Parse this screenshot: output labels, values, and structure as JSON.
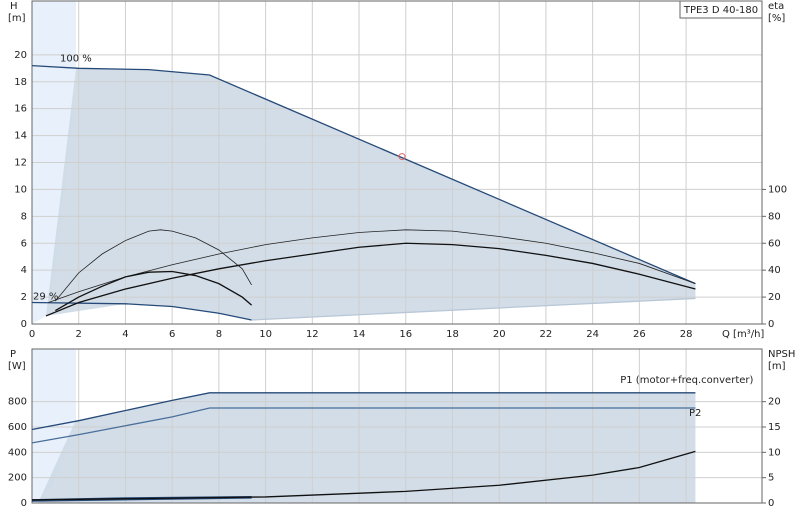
{
  "chart_data": [
    {
      "type": "line",
      "title": "TPE3 D 40-180",
      "x_label": "Q [m³/h]",
      "y_label": "H",
      "y_unit": "[m]",
      "y2_label": "eta",
      "y2_unit": "[%]",
      "xlim": [
        0,
        31.25
      ],
      "xticks": [
        0,
        2,
        4,
        6,
        8,
        10,
        12,
        14,
        16,
        18,
        20,
        22,
        24,
        26,
        28
      ],
      "ylim": [
        0,
        24
      ],
      "yticks": [
        0,
        2,
        4,
        6,
        8,
        10,
        12,
        14,
        16,
        18,
        20
      ],
      "y2lim": [
        0,
        240
      ],
      "y2ticks": [
        0,
        20,
        40,
        60,
        80,
        100
      ],
      "grid": true,
      "series": [
        {
          "name": "100 %",
          "color": "#264a78",
          "x": [
            0,
            2,
            5,
            7.6,
            28.4
          ],
          "values": [
            19.2,
            19,
            18.9,
            18.5,
            3.0
          ]
        },
        {
          "name": "29 %",
          "color": "#264a78",
          "x": [
            0,
            4,
            6,
            8,
            9.4
          ],
          "values": [
            1.6,
            1.5,
            1.3,
            0.8,
            0.3
          ]
        },
        {
          "color": "#b8c6d6",
          "x": [
            9.4,
            28.4
          ],
          "values": [
            0.3,
            1.9
          ]
        },
        {
          "color": "#222222",
          "axis": "y2",
          "x": [
            0.7,
            2,
            4,
            6,
            8,
            10,
            12,
            14,
            16,
            18,
            20,
            22,
            24,
            26,
            28.4
          ],
          "values": [
            16,
            24,
            35,
            44,
            52,
            59,
            64,
            68,
            70,
            69,
            65,
            60,
            53,
            45,
            30
          ]
        },
        {
          "color": "#111111",
          "axis": "y2",
          "x": [
            0.6,
            2,
            4,
            6,
            8,
            10,
            12,
            14,
            16,
            18,
            20,
            22,
            24,
            26,
            28.4
          ],
          "values": [
            6,
            16,
            26,
            34,
            41,
            47,
            52,
            57,
            60,
            59,
            56,
            51,
            45,
            37,
            26
          ]
        },
        {
          "color": "#222222",
          "axis": "y2",
          "x": [
            1,
            2,
            3,
            4,
            5,
            5.5,
            6,
            7,
            8,
            9,
            9.4
          ],
          "values": [
            17,
            38,
            52,
            62,
            69,
            70,
            69,
            64,
            55,
            41,
            29
          ]
        },
        {
          "color": "#111111",
          "axis": "y2",
          "x": [
            1,
            2,
            3,
            4,
            5,
            6,
            7,
            8,
            9,
            9.4
          ],
          "values": [
            10,
            20,
            28,
            35,
            38.5,
            39,
            36,
            30,
            20,
            14
          ]
        }
      ],
      "point": {
        "x": 15.84,
        "y": 12.44,
        "color": "#e06060"
      }
    },
    {
      "type": "line",
      "y_label": "P",
      "y_unit": "[W]",
      "y2_label": "NPSH",
      "y2_unit": "[m]",
      "xlim": [
        0,
        31.25
      ],
      "xticks": [
        0,
        2,
        4,
        6,
        8,
        10,
        12,
        14,
        16,
        18,
        20,
        22,
        24,
        26,
        28
      ],
      "ylim": [
        0,
        1216
      ],
      "yticks": [
        0,
        200,
        400,
        600,
        800
      ],
      "y2lim": [
        0,
        30.4
      ],
      "y2ticks": [
        0,
        5,
        10,
        15,
        20
      ],
      "grid": true,
      "series": [
        {
          "name": "P1 (motor+freq.converter)",
          "color": "#264a78",
          "x": [
            0,
            2,
            4,
            6,
            7.6,
            28.4
          ],
          "values": [
            580,
            650,
            730,
            810,
            870,
            870
          ]
        },
        {
          "name": "P2",
          "color": "#4a6f9a",
          "x": [
            0,
            2,
            4,
            6,
            7.6,
            28.4
          ],
          "values": [
            475,
            540,
            610,
            680,
            750,
            750
          ]
        },
        {
          "color": "#264a78",
          "x": [
            0,
            4,
            9.4
          ],
          "values": [
            25,
            40,
            50
          ]
        },
        {
          "color": "#264a78",
          "x": [
            0,
            9.4
          ],
          "values": [
            15,
            40
          ]
        },
        {
          "color": "#111111",
          "axis": "y2",
          "x": [
            0,
            10,
            16,
            20,
            24,
            26,
            28.4
          ],
          "values": [
            0.6,
            1.2,
            2.3,
            3.5,
            5.5,
            7,
            10.2
          ]
        }
      ]
    }
  ]
}
